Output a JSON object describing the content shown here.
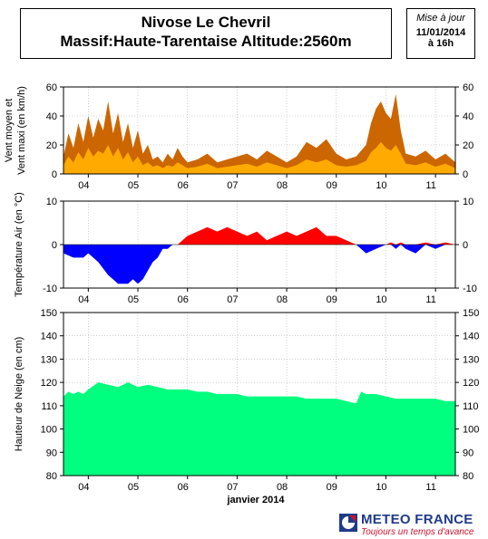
{
  "header": {
    "title_line1": "Nivose Le Chevril",
    "title_line2": "Massif:Haute-Tarentaise Altitude:2560m",
    "date_caption": "Mise à jour",
    "date_line1": "11/01/2014",
    "date_line2": "à 16h"
  },
  "footer": {
    "brand": "METEO FRANCE",
    "slogan": "Toujours un temps d'avance"
  },
  "colors": {
    "wind_max": "#cc6600",
    "wind_mean": "#ffaa00",
    "temp_pos": "#ff0000",
    "temp_neg": "#0000ff",
    "snow": "#00ff7f"
  },
  "chart_data": [
    {
      "type": "area",
      "ylabel_line1": "Vent moyen et",
      "ylabel_line2": "Vent maxi (en km/h)",
      "ylim": [
        0,
        60
      ],
      "yticks": [
        0,
        20,
        40,
        60
      ],
      "xlim": [
        3.5,
        11.4
      ],
      "x_tick_labels": [
        "04",
        "05",
        "06",
        "07",
        "08",
        "09",
        "10",
        "11"
      ],
      "x_ticks": [
        4,
        5,
        6,
        7,
        8,
        9,
        10,
        11
      ],
      "series": [
        {
          "x": [
            3.5,
            3.6,
            3.7,
            3.8,
            3.9,
            4.0,
            4.1,
            4.2,
            4.3,
            4.4,
            4.5,
            4.6,
            4.7,
            4.8,
            4.9,
            5.0,
            5.1,
            5.2,
            5.3,
            5.4,
            5.5,
            5.6,
            5.7,
            5.8,
            5.9,
            6.0,
            6.2,
            6.4,
            6.6,
            6.8,
            7.0,
            7.2,
            7.4,
            7.6,
            7.8,
            8.0,
            8.2,
            8.4,
            8.6,
            8.8,
            9.0,
            9.2,
            9.4,
            9.6,
            9.7,
            9.8,
            9.9,
            10.0,
            10.1,
            10.2,
            10.3,
            10.4,
            10.6,
            10.8,
            11.0,
            11.2,
            11.4
          ],
          "values": [
            12,
            28,
            18,
            35,
            22,
            40,
            25,
            38,
            30,
            50,
            28,
            42,
            22,
            35,
            18,
            30,
            14,
            20,
            10,
            12,
            8,
            14,
            10,
            18,
            12,
            8,
            10,
            14,
            8,
            10,
            12,
            14,
            10,
            16,
            12,
            8,
            12,
            22,
            18,
            24,
            14,
            10,
            12,
            20,
            35,
            45,
            50,
            42,
            38,
            55,
            30,
            14,
            12,
            16,
            10,
            14,
            8
          ]
        },
        {
          "x": [
            3.5,
            3.6,
            3.7,
            3.8,
            3.9,
            4.0,
            4.1,
            4.2,
            4.3,
            4.4,
            4.5,
            4.6,
            4.7,
            4.8,
            4.9,
            5.0,
            5.1,
            5.2,
            5.3,
            5.4,
            5.5,
            5.6,
            5.7,
            5.8,
            5.9,
            6.0,
            6.2,
            6.4,
            6.6,
            6.8,
            7.0,
            7.2,
            7.4,
            7.6,
            7.8,
            8.0,
            8.2,
            8.4,
            8.6,
            8.8,
            9.0,
            9.2,
            9.4,
            9.6,
            9.7,
            9.8,
            9.9,
            10.0,
            10.1,
            10.2,
            10.3,
            10.4,
            10.6,
            10.8,
            11.0,
            11.2,
            11.4
          ],
          "values": [
            6,
            12,
            8,
            15,
            10,
            18,
            12,
            16,
            14,
            20,
            12,
            18,
            10,
            15,
            8,
            12,
            6,
            8,
            5,
            6,
            4,
            6,
            5,
            8,
            6,
            4,
            5,
            7,
            4,
            5,
            6,
            7,
            5,
            8,
            6,
            4,
            6,
            10,
            8,
            10,
            6,
            5,
            6,
            9,
            15,
            18,
            22,
            18,
            16,
            20,
            14,
            7,
            6,
            8,
            5,
            7,
            4
          ]
        }
      ]
    },
    {
      "type": "area",
      "ylabel": "Température Air (en °C)",
      "ylim": [
        -10,
        10
      ],
      "yticks": [
        -10,
        0,
        10
      ],
      "xlim": [
        3.5,
        11.4
      ],
      "x_tick_labels": [
        "04",
        "05",
        "06",
        "07",
        "08",
        "09",
        "10",
        "11"
      ],
      "x_ticks": [
        4,
        5,
        6,
        7,
        8,
        9,
        10,
        11
      ],
      "series": [
        {
          "x": [
            3.5,
            3.7,
            3.9,
            4.0,
            4.2,
            4.4,
            4.5,
            4.6,
            4.8,
            4.9,
            5.0,
            5.1,
            5.2,
            5.3,
            5.4,
            5.5,
            5.6,
            5.7,
            5.8,
            5.9,
            6.0,
            6.2,
            6.4,
            6.6,
            6.8,
            7.0,
            7.2,
            7.4,
            7.6,
            7.8,
            8.0,
            8.2,
            8.4,
            8.6,
            8.8,
            9.0,
            9.2,
            9.4,
            9.6,
            9.8,
            10.0,
            10.1,
            10.2,
            10.3,
            10.4,
            10.6,
            10.8,
            11.0,
            11.2,
            11.4
          ],
          "values": [
            -2,
            -3,
            -3,
            -2,
            -4,
            -7,
            -8,
            -9,
            -9,
            -8,
            -9,
            -8,
            -6,
            -4,
            -3,
            -1,
            -1,
            0,
            0,
            1,
            2,
            3,
            4,
            3,
            4,
            3,
            2,
            3,
            1,
            2,
            3,
            2,
            3,
            4,
            2,
            2,
            1,
            0,
            -2,
            -1,
            0,
            0.5,
            -1,
            0.5,
            -1,
            -2,
            0.5,
            -1,
            0.5,
            0
          ]
        }
      ]
    },
    {
      "type": "area",
      "ylabel": "Hauteur de Neige (en cm)",
      "ylim": [
        80,
        150
      ],
      "yticks": [
        80,
        90,
        100,
        110,
        120,
        130,
        140,
        150
      ],
      "xlim": [
        3.5,
        11.4
      ],
      "x_tick_labels": [
        "04",
        "05",
        "06",
        "07",
        "08",
        "09",
        "10",
        "11"
      ],
      "x_ticks": [
        4,
        5,
        6,
        7,
        8,
        9,
        10,
        11
      ],
      "xlabel": "janvier 2014",
      "series": [
        {
          "x": [
            3.5,
            3.6,
            3.7,
            3.8,
            3.9,
            4.0,
            4.2,
            4.4,
            4.6,
            4.8,
            5.0,
            5.2,
            5.4,
            5.6,
            5.8,
            6.0,
            6.2,
            6.4,
            6.6,
            6.8,
            7.0,
            7.2,
            7.4,
            7.6,
            7.8,
            8.0,
            8.2,
            8.4,
            8.6,
            8.8,
            9.0,
            9.2,
            9.4,
            9.5,
            9.6,
            9.8,
            10.0,
            10.2,
            10.4,
            10.6,
            10.8,
            11.0,
            11.2,
            11.4
          ],
          "values": [
            114,
            116,
            115,
            116,
            115,
            117,
            120,
            119,
            118,
            120,
            118,
            119,
            118,
            117,
            117,
            117,
            116,
            116,
            115,
            115,
            115,
            114,
            114,
            114,
            114,
            114,
            114,
            113,
            113,
            113,
            113,
            112,
            111,
            116,
            115,
            115,
            114,
            113,
            113,
            113,
            113,
            113,
            112,
            112
          ]
        }
      ]
    }
  ]
}
